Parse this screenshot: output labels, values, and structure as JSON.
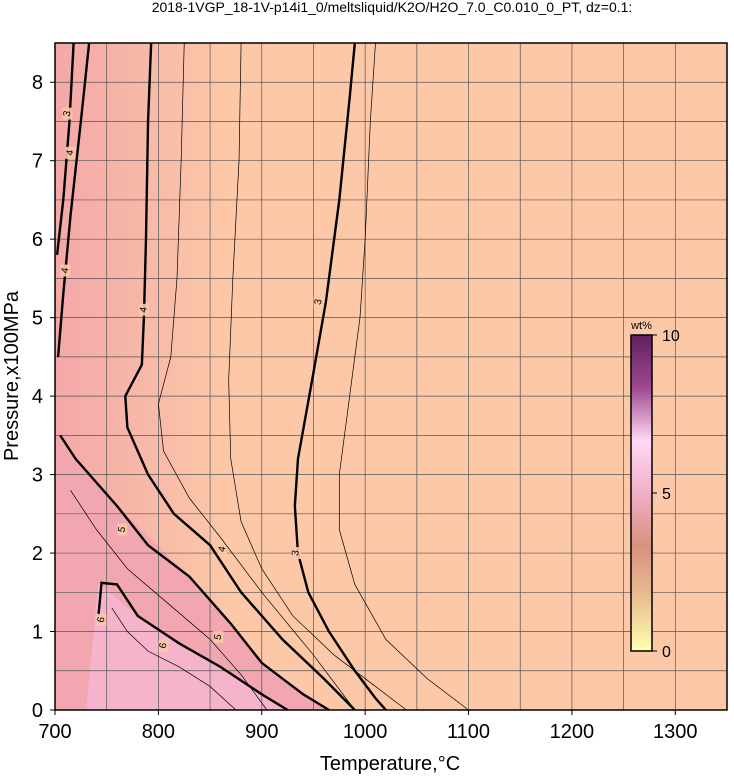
{
  "chart_data": {
    "type": "contour",
    "title": "2018-1VGP_18-1V-p14i1_0/meltsliquid/K2O/H2O_7.0_C0.010_0_PT, dz=0.1:",
    "x_label": "Temperature,°C",
    "y_label": "Pressure,x100MPa",
    "xlim": [
      700,
      1350
    ],
    "ylim": [
      0,
      8.5
    ],
    "xticks": [
      700,
      800,
      900,
      1000,
      1100,
      1200,
      1300
    ],
    "yticks": [
      0,
      1,
      2,
      3,
      4,
      5,
      6,
      7,
      8
    ],
    "xminorticks": [
      750,
      850,
      950,
      1050,
      1150,
      1250
    ],
    "yminorticks": [
      0.5,
      1.5,
      2.5,
      3.5,
      4.5,
      5.5,
      6.5,
      7.5
    ],
    "grid": true,
    "contours": [
      {
        "level": 3,
        "major": true,
        "x": [
          990,
          985,
          975,
          962,
          950,
          935,
          932,
          935,
          945,
          965,
          990,
          1010,
          1020
        ],
        "y": [
          8.5,
          7.8,
          6.5,
          5.2,
          4.3,
          3.2,
          2.6,
          2.0,
          1.5,
          1.0,
          0.5,
          0.15,
          0
        ],
        "label_at": [
          [
            955,
            5.2
          ],
          [
            933,
            2.0
          ]
        ]
      },
      {
        "level": 4,
        "major": true,
        "x": [
          793,
          790,
          788,
          786,
          784,
          768,
          770,
          790,
          815,
          850,
          880,
          920,
          960,
          990
        ],
        "y": [
          8.5,
          7.5,
          6.0,
          5.0,
          4.4,
          4.0,
          3.6,
          3.0,
          2.5,
          2.1,
          1.5,
          0.9,
          0.4,
          0
        ],
        "label_at": [
          [
            786,
            5.1
          ],
          [
            862,
            2.05
          ]
        ]
      },
      {
        "level": 5,
        "major": true,
        "x": [
          705,
          720,
          760,
          790,
          830,
          870,
          900,
          940,
          965
        ],
        "y": [
          3.5,
          3.2,
          2.6,
          2.1,
          1.7,
          1.1,
          0.6,
          0.2,
          0
        ],
        "label_at": [
          [
            765,
            2.3
          ],
          [
            858,
            0.93
          ]
        ]
      },
      {
        "level": 6,
        "major": true,
        "x": [
          742,
          745,
          760,
          780,
          820,
          860,
          900,
          925
        ],
        "y": [
          1.2,
          1.62,
          1.6,
          1.2,
          0.85,
          0.55,
          0.2,
          0
        ],
        "label_at": [
          [
            745,
            1.15
          ],
          [
            805,
            0.82
          ]
        ]
      },
      {
        "level": 3,
        "major": true,
        "x": [
          718,
          714,
          708,
          702
        ],
        "y": [
          8.5,
          7.5,
          6.5,
          5.8
        ],
        "label_at": [
          [
            712,
            7.6
          ]
        ]
      },
      {
        "level": 4,
        "major": true,
        "x": [
          733,
          725,
          715,
          708,
          703
        ],
        "y": [
          8.5,
          7.5,
          6.3,
          5.3,
          4.5
        ],
        "label_at": [
          [
            715,
            7.1
          ],
          [
            710,
            5.6
          ]
        ]
      },
      {
        "level": 3.5,
        "major": false,
        "x": [
          880,
          878,
          872,
          868,
          870,
          880,
          900,
          930,
          970,
          1010,
          1040
        ],
        "y": [
          8.5,
          7.0,
          5.5,
          4.2,
          3.2,
          2.4,
          1.8,
          1.2,
          0.7,
          0.3,
          0
        ]
      },
      {
        "level": 3.8,
        "major": false,
        "x": [
          825,
          822,
          818,
          812,
          800,
          805,
          830,
          860,
          900,
          950,
          990
        ],
        "y": [
          8.5,
          7.0,
          5.5,
          4.5,
          3.9,
          3.3,
          2.7,
          2.2,
          1.5,
          0.7,
          0
        ]
      },
      {
        "level": 2.9,
        "major": false,
        "x": [
          1010,
          1005,
          1000,
          995,
          985,
          975,
          975,
          990,
          1020,
          1060,
          1100
        ],
        "y": [
          8.5,
          7.5,
          6.0,
          5.0,
          4.0,
          3.0,
          2.3,
          1.6,
          0.9,
          0.4,
          0
        ]
      },
      {
        "level": 5.5,
        "major": false,
        "x": [
          715,
          740,
          770,
          810,
          850,
          880,
          905
        ],
        "y": [
          2.8,
          2.3,
          1.8,
          1.35,
          0.9,
          0.45,
          0
        ]
      },
      {
        "level": 6.5,
        "major": false,
        "x": [
          755,
          770,
          790,
          820,
          850,
          875
        ],
        "y": [
          1.3,
          1.0,
          0.75,
          0.55,
          0.3,
          0
        ]
      }
    ],
    "colorbar": {
      "label": "wt%",
      "lim": [
        0,
        10
      ],
      "ticks": [
        0,
        5,
        10
      ],
      "colors": [
        "#ffffb0",
        "#e8c090",
        "#d89080",
        "#f0b0c8",
        "#ffd8f4",
        "#a04890",
        "#602060"
      ]
    }
  }
}
